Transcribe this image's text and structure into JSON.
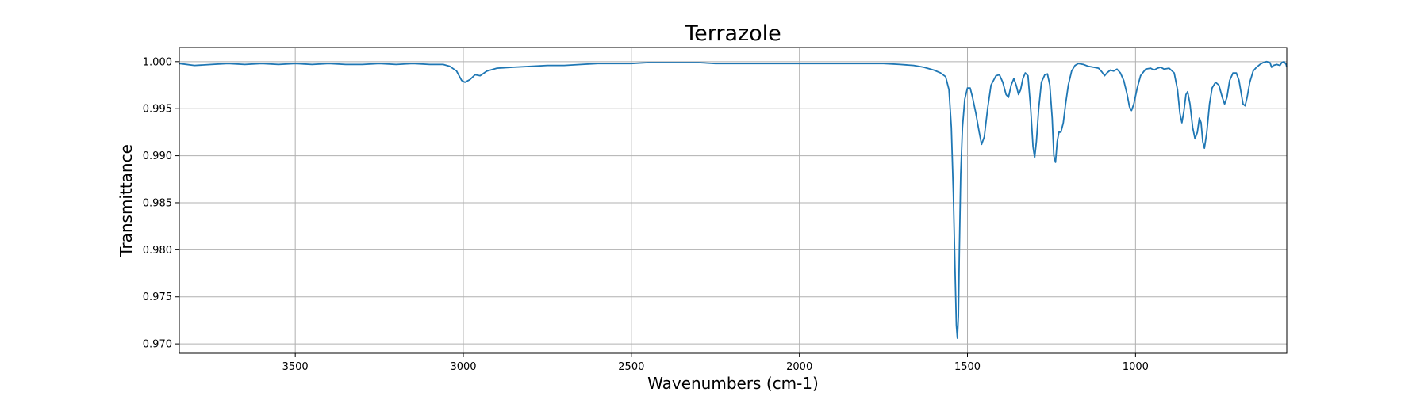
{
  "chart_data": {
    "type": "line",
    "title": "Terrazole",
    "xlabel": "Wavenumbers (cm-1)",
    "ylabel": "Transmittance",
    "xlim": [
      3845,
      550
    ],
    "ylim": [
      0.969,
      1.0015
    ],
    "x_ticks": [
      3500,
      3000,
      2500,
      2000,
      1500,
      1000
    ],
    "x_tick_labels": [
      "3500",
      "3000",
      "2500",
      "2000",
      "1500",
      "1000"
    ],
    "y_ticks": [
      0.97,
      0.975,
      0.98,
      0.985,
      0.99,
      0.995,
      1.0
    ],
    "y_tick_labels": [
      "0.970",
      "0.975",
      "0.980",
      "0.985",
      "0.990",
      "0.995",
      "1.000"
    ],
    "grid": true,
    "color": "#1f77b4",
    "series": [
      {
        "points": [
          [
            3845,
            0.9998
          ],
          [
            3800,
            0.9996
          ],
          [
            3750,
            0.9997
          ],
          [
            3700,
            0.9998
          ],
          [
            3650,
            0.9997
          ],
          [
            3600,
            0.9998
          ],
          [
            3550,
            0.9997
          ],
          [
            3500,
            0.9998
          ],
          [
            3450,
            0.9997
          ],
          [
            3400,
            0.9998
          ],
          [
            3350,
            0.9997
          ],
          [
            3300,
            0.9997
          ],
          [
            3250,
            0.9998
          ],
          [
            3200,
            0.9997
          ],
          [
            3150,
            0.9998
          ],
          [
            3100,
            0.9997
          ],
          [
            3060,
            0.9997
          ],
          [
            3040,
            0.9995
          ],
          [
            3020,
            0.999
          ],
          [
            3005,
            0.998
          ],
          [
            2995,
            0.9978
          ],
          [
            2980,
            0.9981
          ],
          [
            2965,
            0.9986
          ],
          [
            2950,
            0.9985
          ],
          [
            2930,
            0.999
          ],
          [
            2900,
            0.9993
          ],
          [
            2850,
            0.9994
          ],
          [
            2800,
            0.9995
          ],
          [
            2750,
            0.9996
          ],
          [
            2700,
            0.9996
          ],
          [
            2650,
            0.9997
          ],
          [
            2600,
            0.9998
          ],
          [
            2550,
            0.9998
          ],
          [
            2500,
            0.9998
          ],
          [
            2450,
            0.9999
          ],
          [
            2400,
            0.9999
          ],
          [
            2350,
            0.9999
          ],
          [
            2300,
            0.9999
          ],
          [
            2250,
            0.9998
          ],
          [
            2200,
            0.9998
          ],
          [
            2150,
            0.9998
          ],
          [
            2100,
            0.9998
          ],
          [
            2050,
            0.9998
          ],
          [
            2000,
            0.9998
          ],
          [
            1950,
            0.9998
          ],
          [
            1900,
            0.9998
          ],
          [
            1850,
            0.9998
          ],
          [
            1800,
            0.9998
          ],
          [
            1750,
            0.9998
          ],
          [
            1700,
            0.9997
          ],
          [
            1660,
            0.9996
          ],
          [
            1630,
            0.9994
          ],
          [
            1600,
            0.9991
          ],
          [
            1580,
            0.9988
          ],
          [
            1565,
            0.9984
          ],
          [
            1555,
            0.997
          ],
          [
            1548,
            0.993
          ],
          [
            1542,
            0.986
          ],
          [
            1537,
            0.978
          ],
          [
            1533,
            0.972
          ],
          [
            1530,
            0.9706
          ],
          [
            1527,
            0.973
          ],
          [
            1524,
            0.98
          ],
          [
            1520,
            0.988
          ],
          [
            1515,
            0.993
          ],
          [
            1508,
            0.996
          ],
          [
            1500,
            0.9972
          ],
          [
            1492,
            0.9972
          ],
          [
            1485,
            0.9962
          ],
          [
            1475,
            0.9945
          ],
          [
            1465,
            0.9925
          ],
          [
            1458,
            0.9912
          ],
          [
            1450,
            0.992
          ],
          [
            1440,
            0.995
          ],
          [
            1430,
            0.9975
          ],
          [
            1415,
            0.9985
          ],
          [
            1405,
            0.9986
          ],
          [
            1395,
            0.9978
          ],
          [
            1385,
            0.9965
          ],
          [
            1378,
            0.9962
          ],
          [
            1370,
            0.9975
          ],
          [
            1362,
            0.9982
          ],
          [
            1355,
            0.9975
          ],
          [
            1348,
            0.9965
          ],
          [
            1342,
            0.997
          ],
          [
            1335,
            0.9982
          ],
          [
            1328,
            0.9988
          ],
          [
            1320,
            0.9985
          ],
          [
            1312,
            0.995
          ],
          [
            1305,
            0.991
          ],
          [
            1300,
            0.9898
          ],
          [
            1295,
            0.9915
          ],
          [
            1288,
            0.995
          ],
          [
            1280,
            0.9978
          ],
          [
            1270,
            0.9986
          ],
          [
            1262,
            0.9987
          ],
          [
            1255,
            0.9975
          ],
          [
            1248,
            0.994
          ],
          [
            1243,
            0.99
          ],
          [
            1238,
            0.9893
          ],
          [
            1233,
            0.9915
          ],
          [
            1228,
            0.9925
          ],
          [
            1222,
            0.9925
          ],
          [
            1215,
            0.9935
          ],
          [
            1208,
            0.9955
          ],
          [
            1200,
            0.9975
          ],
          [
            1190,
            0.999
          ],
          [
            1180,
            0.9996
          ],
          [
            1170,
            0.9998
          ],
          [
            1155,
            0.9997
          ],
          [
            1140,
            0.9995
          ],
          [
            1125,
            0.9994
          ],
          [
            1110,
            0.9993
          ],
          [
            1100,
            0.9989
          ],
          [
            1092,
            0.9985
          ],
          [
            1085,
            0.9988
          ],
          [
            1075,
            0.9991
          ],
          [
            1065,
            0.999
          ],
          [
            1055,
            0.9992
          ],
          [
            1045,
            0.9988
          ],
          [
            1035,
            0.998
          ],
          [
            1025,
            0.9965
          ],
          [
            1018,
            0.9952
          ],
          [
            1012,
            0.9948
          ],
          [
            1005,
            0.9955
          ],
          [
            995,
            0.9972
          ],
          [
            985,
            0.9985
          ],
          [
            970,
            0.9992
          ],
          [
            955,
            0.9993
          ],
          [
            945,
            0.9991
          ],
          [
            935,
            0.9993
          ],
          [
            925,
            0.9994
          ],
          [
            915,
            0.9992
          ],
          [
            900,
            0.9993
          ],
          [
            885,
            0.9988
          ],
          [
            875,
            0.997
          ],
          [
            868,
            0.9945
          ],
          [
            862,
            0.9935
          ],
          [
            856,
            0.9948
          ],
          [
            850,
            0.9965
          ],
          [
            845,
            0.9968
          ],
          [
            838,
            0.9955
          ],
          [
            830,
            0.993
          ],
          [
            823,
            0.9918
          ],
          [
            816,
            0.9925
          ],
          [
            810,
            0.994
          ],
          [
            805,
            0.9935
          ],
          [
            800,
            0.9915
          ],
          [
            795,
            0.9908
          ],
          [
            788,
            0.9925
          ],
          [
            780,
            0.9955
          ],
          [
            772,
            0.9972
          ],
          [
            762,
            0.9978
          ],
          [
            752,
            0.9975
          ],
          [
            742,
            0.9962
          ],
          [
            735,
            0.9955
          ],
          [
            728,
            0.9962
          ],
          [
            720,
            0.998
          ],
          [
            710,
            0.9988
          ],
          [
            700,
            0.9988
          ],
          [
            692,
            0.998
          ],
          [
            685,
            0.9965
          ],
          [
            680,
            0.9955
          ],
          [
            674,
            0.9953
          ],
          [
            668,
            0.9962
          ],
          [
            660,
            0.9978
          ],
          [
            650,
            0.999
          ],
          [
            640,
            0.9994
          ],
          [
            630,
            0.9997
          ],
          [
            620,
            0.9999
          ],
          [
            610,
            1.0
          ],
          [
            600,
            0.9999
          ],
          [
            595,
            0.9994
          ],
          [
            590,
            0.9996
          ],
          [
            580,
            0.9997
          ],
          [
            570,
            0.9996
          ],
          [
            565,
            0.9999
          ],
          [
            558,
            1.0
          ],
          [
            552,
            0.9997
          ],
          [
            550,
            0.9994
          ]
        ]
      }
    ]
  }
}
